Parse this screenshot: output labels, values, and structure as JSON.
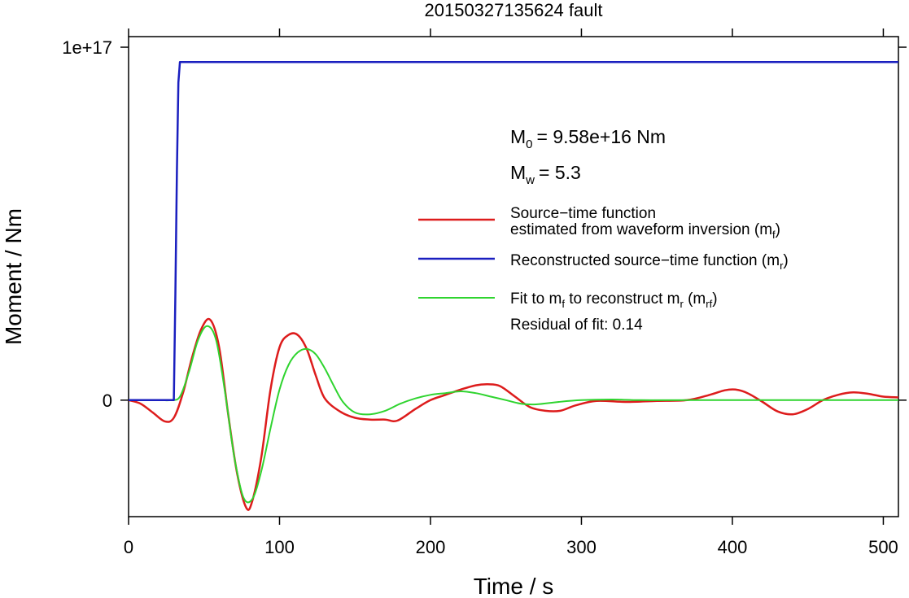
{
  "chart_data": {
    "type": "line",
    "title": "20150327135624 fault",
    "xlabel": "Time / s",
    "ylabel": "Moment / Nm",
    "xlim": [
      0,
      510
    ],
    "ylim": [
      -3.3e+16,
      1.03e+17
    ],
    "x_ticks": [
      0,
      100,
      200,
      300,
      400,
      500
    ],
    "x_tick_labels": [
      "0",
      "100",
      "200",
      "300",
      "400",
      "500"
    ],
    "y_ticks": [
      0,
      1e+17
    ],
    "y_tick_labels": [
      "0",
      "1e+17"
    ],
    "grid": false,
    "legend_position": "right, upper half",
    "annotations": {
      "m0_symbol": "M",
      "m0_sub": "0",
      "m0_value": "= 9.58e+16 Nm",
      "mw_symbol": "M",
      "mw_sub": "w",
      "mw_value": "= 5.3",
      "residual": "Residual of fit: 0.14"
    },
    "legend": [
      {
        "key": "mf",
        "color": "#dd1c1c",
        "line1": "Source−time function",
        "line2_text": "estimated from waveform inversion (m",
        "line2_sub": "f",
        "line2_end": ")"
      },
      {
        "key": "mr",
        "color": "#1a1fbf",
        "text": "Reconstructed source−time function (m",
        "sub": "r",
        "end": ")"
      },
      {
        "key": "mrf",
        "color": "#2fd42f",
        "text_a": "Fit to m",
        "sub_a": "f",
        "text_b": " to reconstruct m",
        "sub_b": "r",
        "text_c": " (m",
        "sub_c": "rf",
        "text_d": ")"
      }
    ],
    "series": [
      {
        "name": "Source−time function estimated from waveform inversion (mf)",
        "color": "#dd1c1c",
        "x": [
          0,
          8,
          16,
          24,
          30,
          36,
          42,
          48,
          54,
          60,
          66,
          72,
          78,
          82,
          88,
          94,
          100,
          106,
          112,
          118,
          124,
          130,
          140,
          150,
          160,
          170,
          178,
          190,
          200,
          210,
          220,
          230,
          238,
          246,
          256,
          266,
          276,
          286,
          296,
          310,
          330,
          350,
          370,
          385,
          395,
          402,
          410,
          420,
          430,
          440,
          450,
          460,
          470,
          480,
          490,
          500,
          510
        ],
        "y": [
          0.0,
          -1000000000000000.0,
          -3500000000000000.0,
          -6000000000000000.0,
          -5000000000000000.0,
          2000000000000000.0,
          1.2e+16,
          2e+16,
          2.28e+16,
          1.5e+16,
          -4000000000000000.0,
          -2.1e+16,
          -3.05e+16,
          -2.85e+16,
          -1.6e+16,
          3000000000000000.0,
          1.5e+16,
          1.85e+16,
          1.85e+16,
          1.45e+16,
          7000000000000000.0,
          500000000000000.0,
          -3200000000000000.0,
          -5000000000000000.0,
          -5500000000000000.0,
          -5500000000000000.0,
          -5800000000000000.0,
          -2500000000000000.0,
          0.0,
          1500000000000000.0,
          3000000000000000.0,
          4200000000000000.0,
          4500000000000000.0,
          4000000000000000.0,
          1000000000000000.0,
          -2000000000000000.0,
          -3000000000000000.0,
          -3000000000000000.0,
          -1500000000000000.0,
          -200000000000000.0,
          -500000000000000.0,
          -200000000000000.0,
          0.0,
          1500000000000000.0,
          2800000000000000.0,
          3000000000000000.0,
          2000000000000000.0,
          -500000000000000.0,
          -3200000000000000.0,
          -4000000000000000.0,
          -2500000000000000.0,
          0.0,
          1500000000000000.0,
          2200000000000000.0,
          1800000000000000.0,
          1000000000000000.0,
          800000000000000.0
        ]
      },
      {
        "name": "Reconstructed source−time function (mr)",
        "color": "#1a1fbf",
        "x": [
          0,
          30,
          31,
          32,
          33,
          34,
          35,
          510
        ],
        "y": [
          0.0,
          0.0,
          3e+16,
          6.5e+16,
          9e+16,
          9.58e+16,
          9.58e+16,
          9.58e+16
        ]
      },
      {
        "name": "Fit to mf to reconstruct mr (mrf)",
        "color": "#2fd42f",
        "x": [
          0,
          20,
          28,
          34,
          40,
          46,
          52,
          58,
          64,
          70,
          76,
          82,
          88,
          94,
          100,
          106,
          112,
          118,
          124,
          130,
          136,
          142,
          150,
          160,
          170,
          180,
          190,
          200,
          210,
          220,
          230,
          240,
          250,
          260,
          270,
          285,
          300,
          320,
          340,
          380,
          510
        ],
        "y": [
          0.0,
          0.0,
          0.0,
          1000000000000000.0,
          8000000000000000.0,
          1.7e+16,
          2.1e+16,
          1.7e+16,
          2000000000000000.0,
          -1.6e+16,
          -2.75e+16,
          -2.8e+16,
          -2e+16,
          -8000000000000000.0,
          3000000000000000.0,
          1e+16,
          1.35e+16,
          1.45e+16,
          1.3e+16,
          9000000000000000.0,
          4000000000000000.0,
          -500000000000000.0,
          -3500000000000000.0,
          -4000000000000000.0,
          -3000000000000000.0,
          -1000000000000000.0,
          500000000000000.0,
          1500000000000000.0,
          2000000000000000.0,
          2500000000000000.0,
          2000000000000000.0,
          1000000000000000.0,
          0.0,
          -1000000000000000.0,
          -1200000000000000.0,
          -500000000000000.0,
          0.0,
          200000000000000.0,
          0.0,
          0.0,
          0.0
        ]
      }
    ]
  }
}
